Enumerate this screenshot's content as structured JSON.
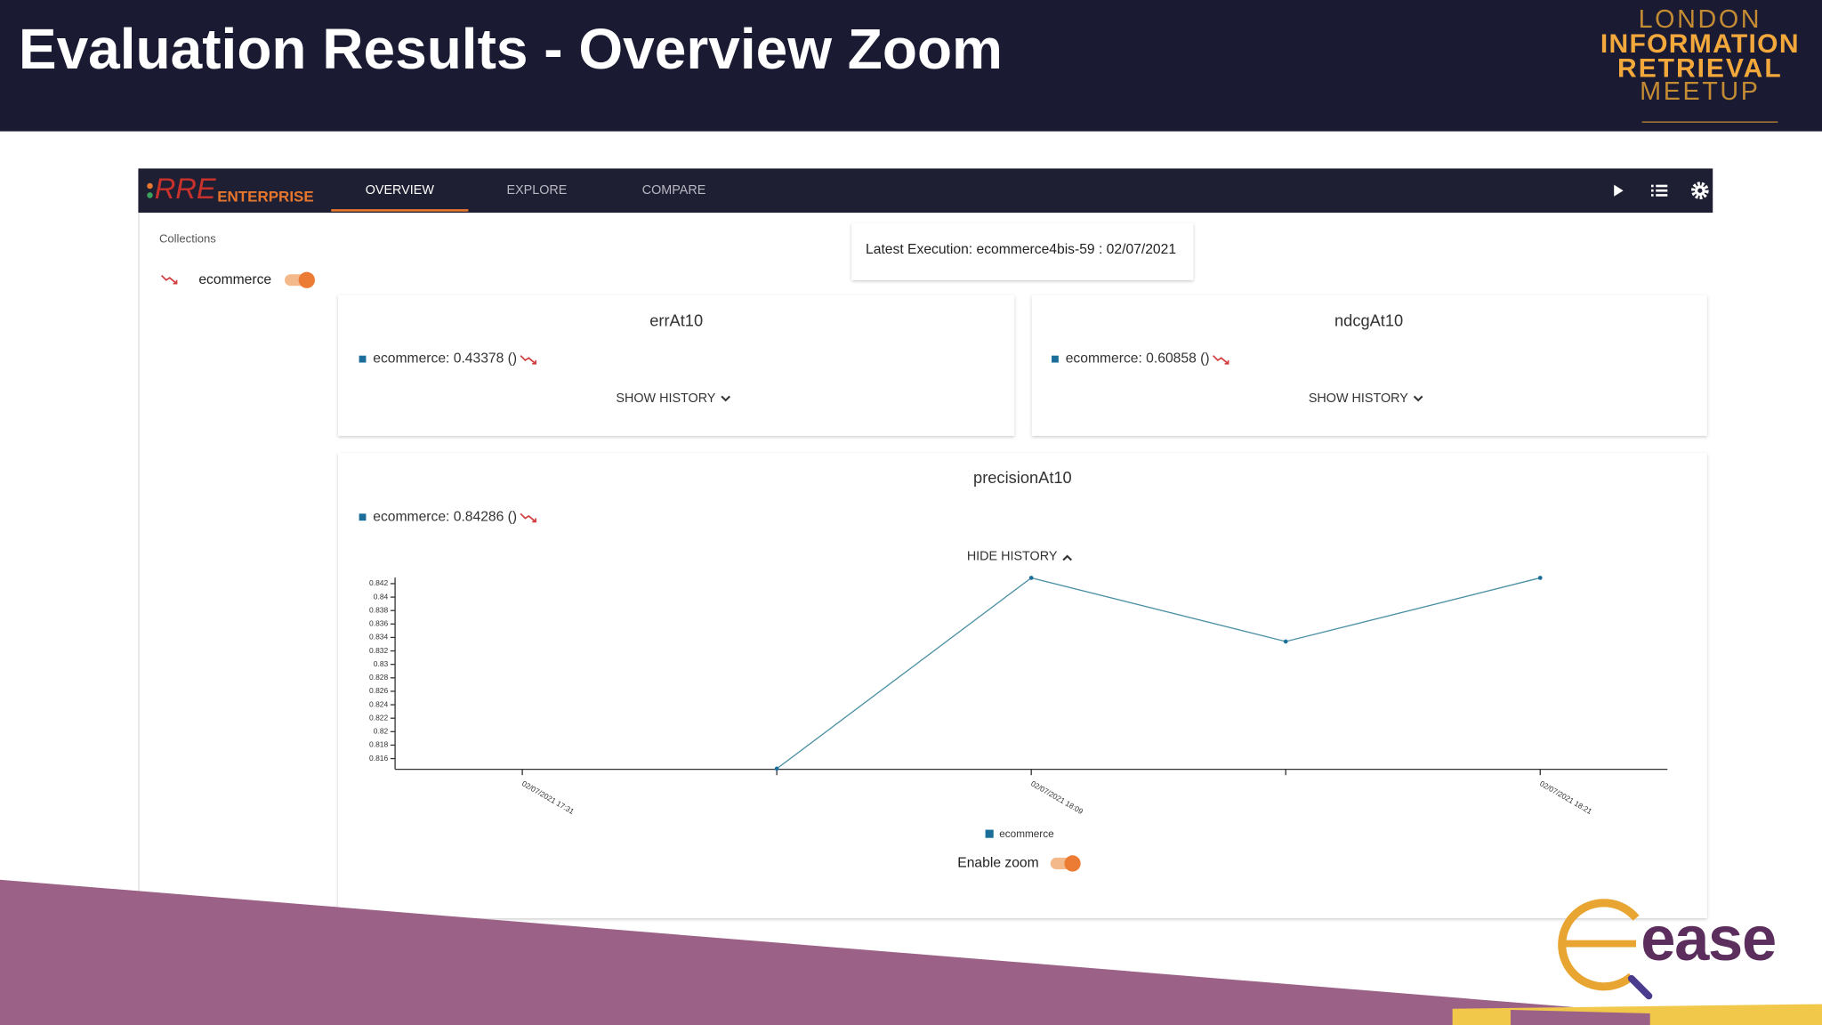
{
  "header": {
    "title": "Evaluation Results - Overview Zoom"
  },
  "meetup_logo": [
    "LONDON",
    "INFORMATION",
    "RETRIEVAL",
    "MEETUP"
  ],
  "app": {
    "brand": [
      "RRE",
      "ENTERPRISE"
    ],
    "tabs": [
      "OVERVIEW",
      "EXPLORE",
      "COMPARE"
    ],
    "sidebar": {
      "heading": "Collections",
      "collections": [
        "ecommerce"
      ]
    },
    "latest_execution": "Latest Execution: ecommerce4bis-59 : 02/07/2021",
    "cards": [
      {
        "title": "errAt10",
        "legend": "ecommerce: 0.43378 ()",
        "action": "SHOW HISTORY"
      },
      {
        "title": "ndcgAt10",
        "legend": "ecommerce: 0.60858 ()",
        "action": "SHOW HISTORY"
      },
      {
        "title": "precisionAt10",
        "legend": "ecommerce: 0.84286 ()",
        "action": "HIDE HISTORY",
        "zoom_label": "Enable zoom"
      }
    ]
  },
  "chart_data": {
    "type": "line",
    "categories": [
      "02/07/2021 17:31",
      null,
      "02/07/2021 18:09",
      null,
      "02/07/2021 18:21"
    ],
    "series": [
      {
        "name": "ecommerce",
        "color": "#4a90a4",
        "values": [
          null,
          0.8145,
          0.84286,
          0.8334,
          0.84286
        ]
      }
    ],
    "ylim": [
      0.8144,
      0.8429
    ],
    "yticks": [
      0.816,
      0.818,
      0.82,
      0.822,
      0.824,
      0.826,
      0.828,
      0.83,
      0.832,
      0.834,
      0.836,
      0.838,
      0.84,
      0.842
    ]
  },
  "sease_logo": "ease"
}
